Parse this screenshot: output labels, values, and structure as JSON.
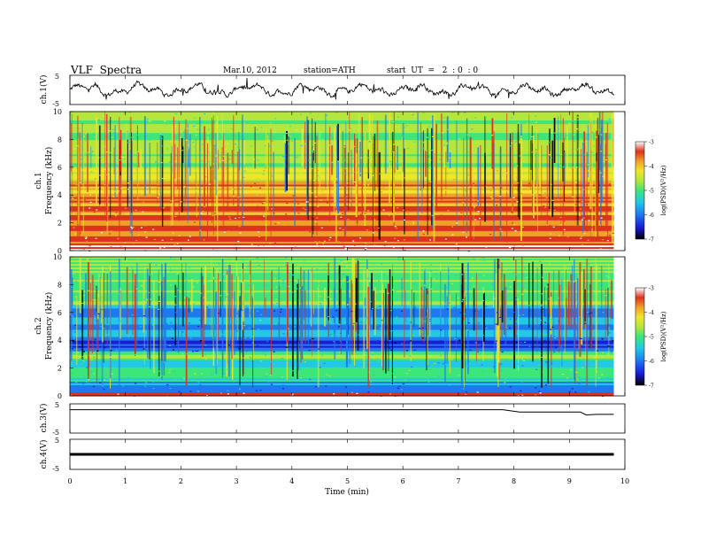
{
  "header": {
    "title": "VLF  Spectra",
    "date": "Mar.10, 2012",
    "station": "station=ATH",
    "start": "start  UT  =   2  : 0  : 0"
  },
  "colors": {
    "trace": "#000000",
    "colormap": [
      "#000000",
      "#1a1ad8",
      "#1e78f0",
      "#22c8e6",
      "#3ce67a",
      "#b4e63c",
      "#f0e628",
      "#f0a028",
      "#dc321e",
      "#ffffff"
    ]
  },
  "chart_data": [
    {
      "id": "ch1_waveform",
      "type": "line",
      "ylabel": "ch.1(V)",
      "ylim": [
        -5,
        5
      ],
      "yticklabels": [
        "5",
        "-5"
      ],
      "x_range_min": [
        0,
        9.8
      ],
      "grid": false,
      "description_values": "noisy waveform oscillating roughly between -3 and +3 V"
    },
    {
      "id": "ch1_spectrogram",
      "type": "heatmap",
      "ylabel": [
        "ch.1",
        "Frequency  (kHz)"
      ],
      "ylim": [
        0,
        10
      ],
      "yticklabels": [
        "0",
        "2",
        "4",
        "6",
        "8",
        "10"
      ],
      "colorbar": {
        "label": "log(PSD)(V²/Hz)",
        "range": [
          -7,
          -3
        ],
        "ticklabels": [
          "-3",
          "-4",
          "-5",
          "-6",
          "-7"
        ]
      }
    },
    {
      "id": "ch2_spectrogram",
      "type": "heatmap",
      "ylabel": [
        "ch.2",
        "Frequency  (kHz)"
      ],
      "ylim": [
        0,
        10
      ],
      "yticklabels": [
        "0",
        "2",
        "4",
        "6",
        "8",
        "10"
      ],
      "colorbar": {
        "label": "log(PSD)(V²/Hz)",
        "range": [
          -7,
          -3
        ],
        "ticklabels": [
          "-3",
          "-4",
          "-5",
          "-6",
          "-7"
        ]
      }
    },
    {
      "id": "ch3_waveform",
      "type": "line",
      "ylabel": "ch.3(V)",
      "ylim": [
        -5,
        5
      ],
      "yticklabels": [
        "5",
        "-5"
      ],
      "x": [
        0,
        7.8,
        8.1,
        9.2,
        9.3,
        9.5,
        9.8
      ],
      "y": [
        3.0,
        3.0,
        2.2,
        2.2,
        1.2,
        1.4,
        1.4
      ]
    },
    {
      "id": "ch4_waveform",
      "type": "line",
      "ylabel": "ch.4(V)",
      "ylim": [
        -5,
        5
      ],
      "yticklabels": [
        "5",
        "-5"
      ],
      "x": [
        0,
        9.8
      ],
      "y": [
        0,
        0
      ]
    }
  ],
  "xaxis": {
    "label": "Time  (min)",
    "range": [
      0,
      10
    ],
    "ticklabels": [
      "0",
      "1",
      "2",
      "3",
      "4",
      "5",
      "6",
      "7",
      "8",
      "9",
      "10"
    ]
  }
}
